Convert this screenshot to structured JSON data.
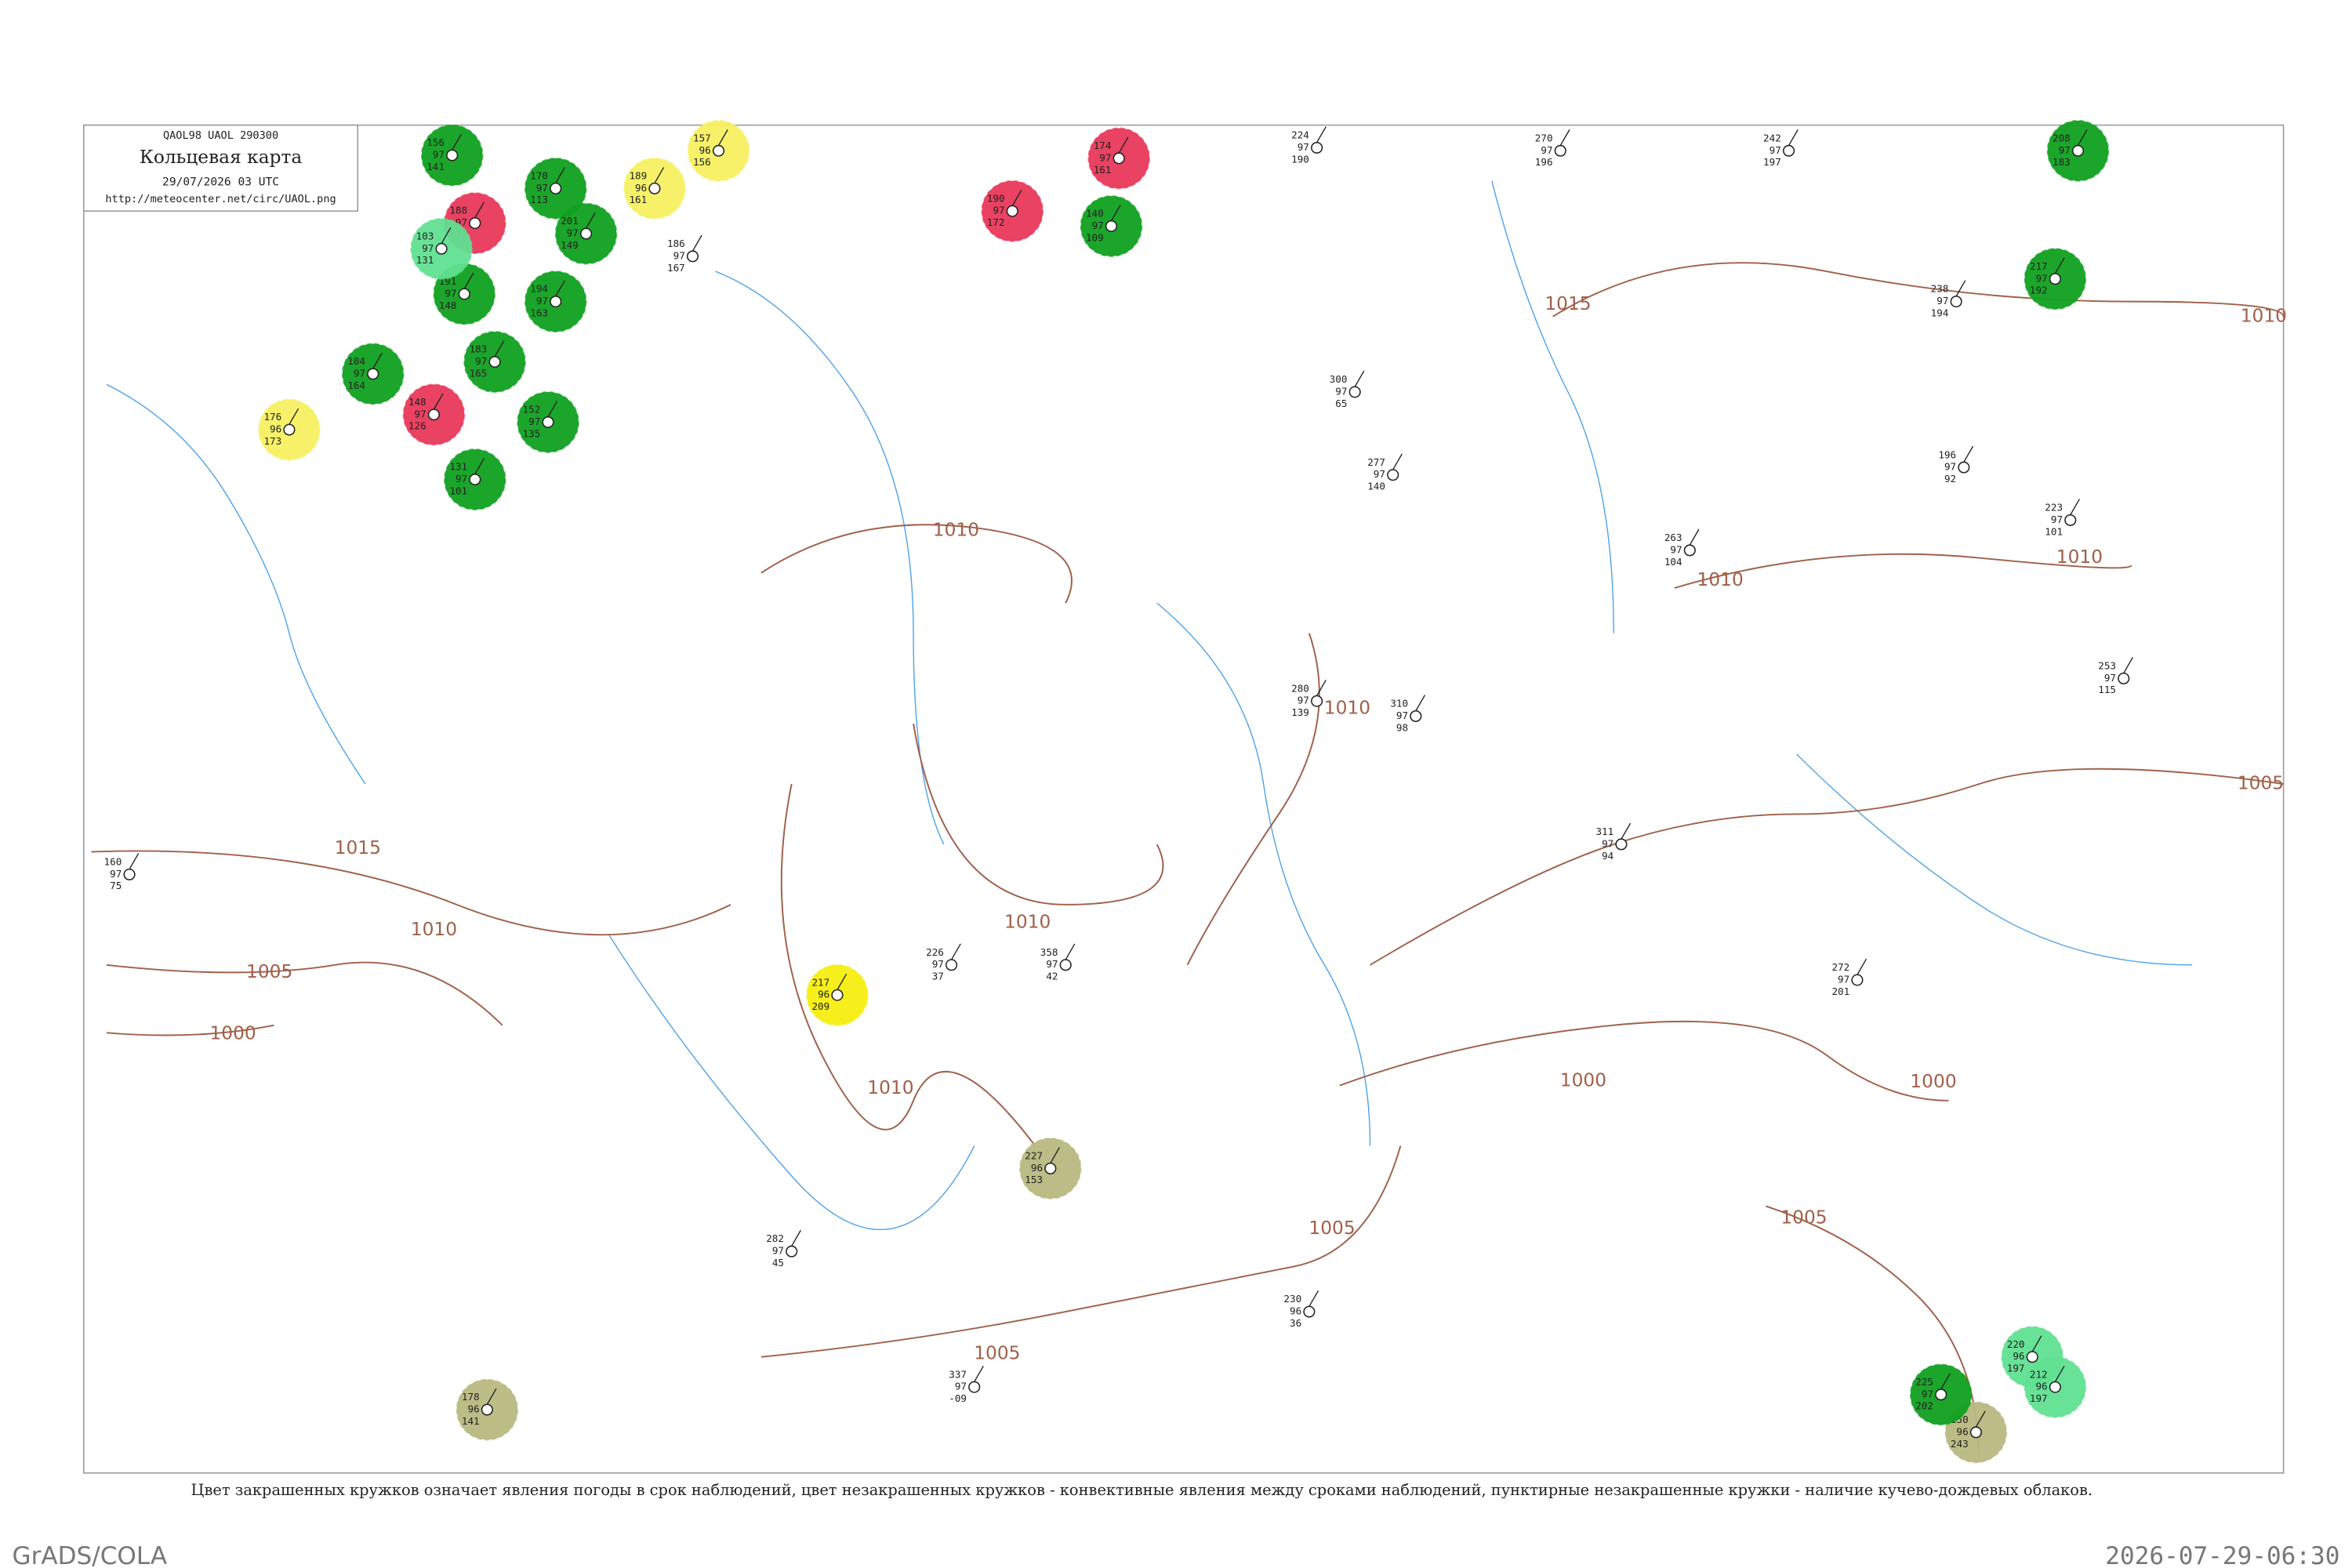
{
  "header": {
    "code": "QAOL98  UAOL  290300",
    "title": "Кольцевая карта",
    "time": "29/07/2026 03 UTC",
    "url": "http://meteocenter.net/circ/UAOL.png"
  },
  "caption": "Цвет закрашенных кружков означает явления погоды в срок наблюдений, цвет незакрашенных кружков - конвективные явления между сроками наблюдений, пунктирные незакрашенные кружки - наличие кучево-дождевых облаков.",
  "footer": {
    "left": "GrADS/COLA",
    "right": "2026-07-29-06:30"
  },
  "isobar_labels": [
    "1010",
    "1010",
    "1010",
    "1010",
    "1010",
    "1010",
    "1010",
    "1010",
    "1005",
    "1005",
    "1005",
    "1005",
    "1005",
    "1000",
    "1000",
    "1000",
    "1015",
    "1015"
  ],
  "stations": [
    {
      "values": [
        "156",
        "97",
        "141"
      ],
      "color": "#10a020"
    },
    {
      "values": [
        "170",
        "97",
        "113"
      ],
      "color": "#10a020"
    },
    {
      "values": [
        "201",
        "97",
        "149"
      ],
      "color": "#10a020"
    },
    {
      "values": [
        "191",
        "97",
        "148"
      ],
      "color": "#10a020"
    },
    {
      "values": [
        "194",
        "97",
        "163"
      ],
      "color": "#10a020"
    },
    {
      "values": [
        "104",
        "97",
        "164"
      ],
      "color": "#10a020"
    },
    {
      "values": [
        "183",
        "97",
        "165"
      ],
      "color": "#10a020"
    },
    {
      "values": [
        "152",
        "97",
        "135"
      ],
      "color": "#10a020"
    },
    {
      "values": [
        "131",
        "97",
        "101"
      ],
      "color": "#10a020"
    },
    {
      "values": [
        "140",
        "97",
        "109"
      ],
      "color": "#10a020"
    },
    {
      "values": [
        "188",
        "97",
        "172"
      ],
      "color": "#e8385a"
    },
    {
      "values": [
        "148",
        "97",
        "126"
      ],
      "color": "#e8385a"
    },
    {
      "values": [
        "190",
        "97",
        "172"
      ],
      "color": "#e8385a"
    },
    {
      "values": [
        "174",
        "97",
        "161"
      ],
      "color": "#e8385a"
    },
    {
      "values": [
        "189",
        "96",
        "161"
      ],
      "color": "#f5f060"
    },
    {
      "values": [
        "176",
        "96",
        "173"
      ],
      "color": "#f5f060"
    },
    {
      "values": [
        "217",
        "96",
        "209"
      ],
      "color": "#f5ee10"
    },
    {
      "values": [
        "157",
        "96",
        "156"
      ],
      "color": "#f5f060"
    },
    {
      "values": [
        "227",
        "96",
        "153"
      ],
      "color": "#b8b880"
    },
    {
      "values": [
        "178",
        "96",
        "141"
      ],
      "color": "#b8b880"
    },
    {
      "values": [
        "250",
        "96",
        "243"
      ],
      "color": "#b8b880"
    },
    {
      "values": [
        "103",
        "97",
        "131"
      ],
      "color": "#60e090"
    },
    {
      "values": [
        "220",
        "96",
        "197"
      ],
      "color": "#60e090"
    },
    {
      "values": [
        "212",
        "96",
        "197"
      ],
      "color": "#60e090"
    },
    {
      "values": [
        "208",
        "97",
        "183"
      ],
      "color": "#10a020"
    },
    {
      "values": [
        "217",
        "97",
        "192"
      ],
      "color": "#10a020"
    },
    {
      "values": [
        "225",
        "97",
        "202"
      ],
      "color": "#10a020"
    },
    {
      "values": [
        "224",
        "97",
        "190"
      ],
      "color": null
    },
    {
      "values": [
        "300",
        "97",
        "65"
      ],
      "color": null
    },
    {
      "values": [
        "270",
        "97",
        "196"
      ],
      "color": null
    },
    {
      "values": [
        "242",
        "97",
        "197"
      ],
      "color": null
    },
    {
      "values": [
        "280",
        "97",
        "139"
      ],
      "color": null
    },
    {
      "values": [
        "311",
        "97",
        "94"
      ],
      "color": null
    },
    {
      "values": [
        "272",
        "97",
        "201"
      ],
      "color": null
    },
    {
      "values": [
        "358",
        "97",
        "42"
      ],
      "color": null
    },
    {
      "values": [
        "226",
        "97",
        "37"
      ],
      "color": null
    },
    {
      "values": [
        "310",
        "97",
        "98"
      ],
      "color": null
    },
    {
      "values": [
        "277",
        "97",
        "140"
      ],
      "color": null
    },
    {
      "values": [
        "263",
        "97",
        "104"
      ],
      "color": null
    },
    {
      "values": [
        "196",
        "97",
        "92"
      ],
      "color": null
    },
    {
      "values": [
        "223",
        "97",
        "101"
      ],
      "color": null
    },
    {
      "values": [
        "253",
        "97",
        "115"
      ],
      "color": null
    },
    {
      "values": [
        "282",
        "97",
        "45"
      ],
      "color": null
    },
    {
      "values": [
        "337",
        "97",
        "-09"
      ],
      "color": null
    },
    {
      "values": [
        "230",
        "96",
        "36"
      ],
      "color": null
    },
    {
      "values": [
        "160",
        "97",
        "75"
      ],
      "color": null
    },
    {
      "values": [
        "186",
        "97",
        "167"
      ],
      "color": null
    },
    {
      "values": [
        "238",
        "97",
        "194"
      ],
      "color": null
    }
  ]
}
